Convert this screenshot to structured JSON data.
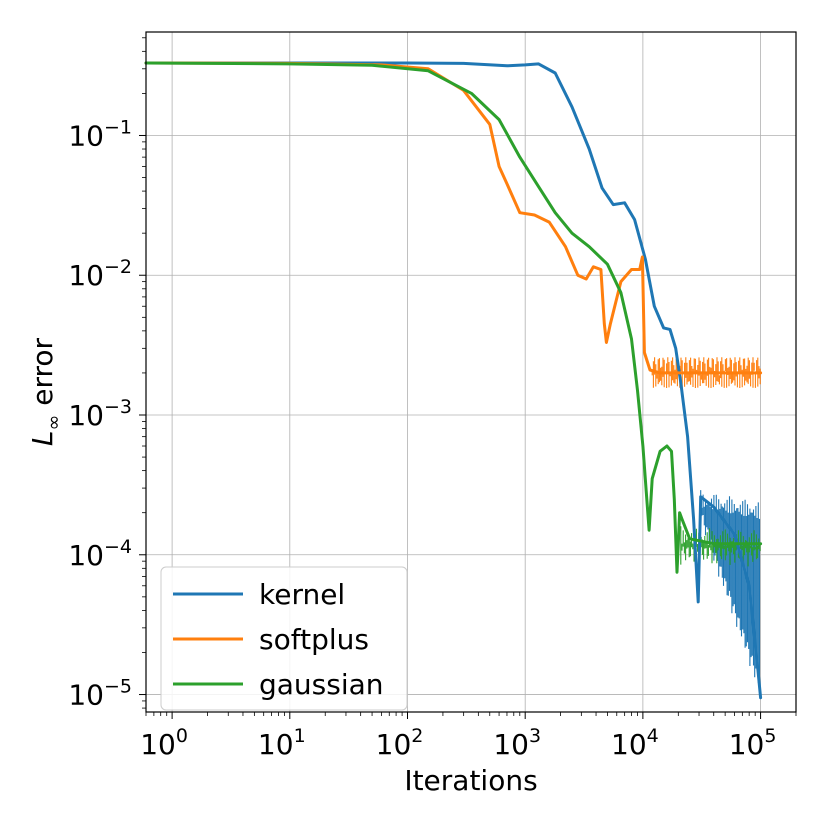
{
  "chart_data": {
    "type": "line",
    "title": "",
    "xlabel": "Iterations",
    "ylabel": "error",
    "ylabel_symbol": "L",
    "ylabel_subscript": "∞",
    "xscale": "log",
    "yscale": "log",
    "xlim": [
      0.6,
      200000
    ],
    "ylim": [
      7.5e-06,
      0.55
    ],
    "grid": true,
    "legend_position": "lower-left",
    "x_ticks": [
      {
        "value": 1,
        "base": "10",
        "exp": "0"
      },
      {
        "value": 10,
        "base": "10",
        "exp": "1"
      },
      {
        "value": 100,
        "base": "10",
        "exp": "2"
      },
      {
        "value": 1000,
        "base": "10",
        "exp": "3"
      },
      {
        "value": 10000,
        "base": "10",
        "exp": "4"
      },
      {
        "value": 100000,
        "base": "10",
        "exp": "5"
      }
    ],
    "y_ticks": [
      {
        "value": 0.1,
        "base": "10",
        "exp": "−1"
      },
      {
        "value": 0.01,
        "base": "10",
        "exp": "−2"
      },
      {
        "value": 0.001,
        "base": "10",
        "exp": "−3"
      },
      {
        "value": 0.0001,
        "base": "10",
        "exp": "−4"
      },
      {
        "value": 1e-05,
        "base": "10",
        "exp": "−5"
      }
    ],
    "series": [
      {
        "name": "kernel",
        "color": "#1f77b4",
        "points": [
          [
            0.6,
            0.33
          ],
          [
            10,
            0.33
          ],
          [
            100,
            0.33
          ],
          [
            300,
            0.328
          ],
          [
            700,
            0.315
          ],
          [
            1000,
            0.32
          ],
          [
            1300,
            0.325
          ],
          [
            1800,
            0.28
          ],
          [
            2500,
            0.16
          ],
          [
            3500,
            0.08
          ],
          [
            4500,
            0.042
          ],
          [
            5600,
            0.032
          ],
          [
            7000,
            0.033
          ],
          [
            8500,
            0.025
          ],
          [
            10500,
            0.013
          ],
          [
            12500,
            0.006
          ],
          [
            15000,
            0.0042
          ],
          [
            17000,
            0.0041
          ],
          [
            19000,
            0.003
          ],
          [
            21000,
            0.0017
          ],
          [
            24000,
            0.0007
          ],
          [
            27000,
            0.00018
          ],
          [
            29500,
            4.6e-05
          ],
          [
            31000,
            0.00026
          ],
          [
            40000,
            0.00022
          ],
          [
            60000,
            0.00014
          ],
          [
            80000,
            6e-05
          ],
          [
            95000,
            1.5e-05
          ],
          [
            100000,
            9.5e-06
          ]
        ],
        "band": {
          "x": [
            31000,
            100000
          ],
          "upper": [
            0.00029,
            0.00024
          ],
          "lower": [
            0.00016,
            9.5e-06
          ]
        }
      },
      {
        "name": "softplus",
        "color": "#ff7f0e",
        "points": [
          [
            0.6,
            0.33
          ],
          [
            10,
            0.328
          ],
          [
            60,
            0.32
          ],
          [
            150,
            0.3
          ],
          [
            300,
            0.21
          ],
          [
            500,
            0.12
          ],
          [
            600,
            0.06
          ],
          [
            700,
            0.045
          ],
          [
            900,
            0.028
          ],
          [
            1200,
            0.027
          ],
          [
            1600,
            0.024
          ],
          [
            2200,
            0.016
          ],
          [
            2800,
            0.01
          ],
          [
            3300,
            0.0094
          ],
          [
            3800,
            0.0115
          ],
          [
            4400,
            0.011
          ],
          [
            4700,
            0.0045
          ],
          [
            4900,
            0.0033
          ],
          [
            5300,
            0.0045
          ],
          [
            6500,
            0.009
          ],
          [
            8000,
            0.011
          ],
          [
            9400,
            0.011
          ],
          [
            9900,
            0.0135
          ],
          [
            10300,
            0.0028
          ],
          [
            11500,
            0.0021
          ],
          [
            14000,
            0.002
          ],
          [
            30000,
            0.002
          ],
          [
            100000,
            0.002
          ]
        ],
        "band": {
          "x": [
            12000,
            100000
          ],
          "upper": [
            0.00208,
            0.00208
          ],
          "lower": [
            0.00192,
            0.00192
          ]
        }
      },
      {
        "name": "gaussian",
        "color": "#2ca02c",
        "points": [
          [
            0.6,
            0.33
          ],
          [
            10,
            0.325
          ],
          [
            50,
            0.318
          ],
          [
            150,
            0.29
          ],
          [
            350,
            0.2
          ],
          [
            600,
            0.13
          ],
          [
            900,
            0.07
          ],
          [
            1300,
            0.043
          ],
          [
            1800,
            0.028
          ],
          [
            2500,
            0.02
          ],
          [
            3500,
            0.016
          ],
          [
            5000,
            0.012
          ],
          [
            6500,
            0.0075
          ],
          [
            8000,
            0.0035
          ],
          [
            9000,
            0.0015
          ],
          [
            10000,
            0.0006
          ],
          [
            10800,
            0.00025
          ],
          [
            11300,
            0.00015
          ],
          [
            12000,
            0.00035
          ],
          [
            14000,
            0.00055
          ],
          [
            16000,
            0.0006
          ],
          [
            17500,
            0.00055
          ],
          [
            18500,
            0.00025
          ],
          [
            19500,
            7.5e-05
          ],
          [
            20000,
            0.00012
          ],
          [
            20500,
            0.0002
          ],
          [
            21500,
            0.00018
          ],
          [
            25000,
            0.00013
          ],
          [
            40000,
            0.00012
          ],
          [
            60000,
            0.00012
          ],
          [
            80000,
            0.00012
          ],
          [
            100000,
            0.00012
          ]
        ],
        "band": {
          "x": [
            21000,
            100000
          ],
          "upper": [
            0.00016,
            0.00015
          ],
          "lower": [
            8.5e-05,
            8.2e-05
          ]
        }
      }
    ]
  }
}
